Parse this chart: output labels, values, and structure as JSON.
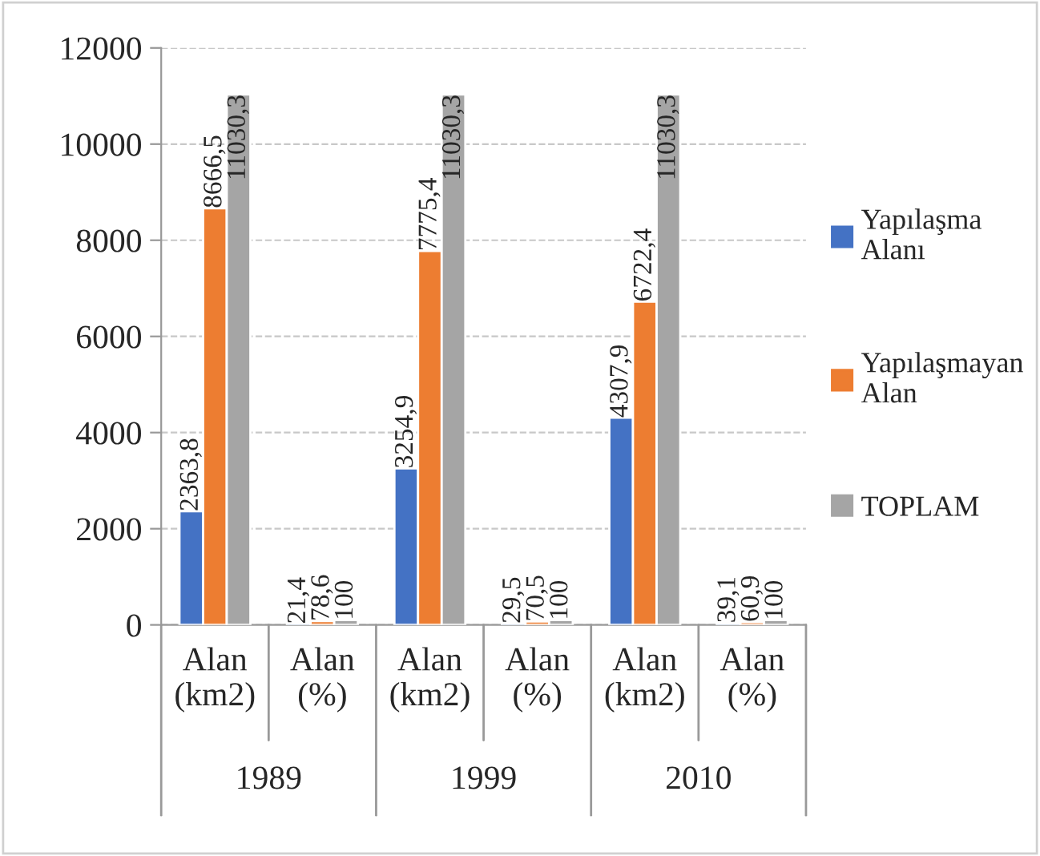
{
  "chart_data": {
    "type": "bar",
    "categories": [
      "Alan\n(km2)",
      "Alan\n(%)",
      "Alan\n(km2)",
      "Alan\n(%)",
      "Alan\n(km2)",
      "Alan\n(%)"
    ],
    "annotations": [
      "1989",
      "1999",
      "2010"
    ],
    "series": [
      {
        "name": "Yapılaşma Alanı",
        "color": "#4472c4",
        "values": [
          2363.8,
          21.4,
          3254.9,
          29.5,
          4307.9,
          39.1
        ],
        "value_labels": [
          "2363,8",
          "21,4",
          "3254,9",
          "29,5",
          "4307,9",
          "39,1"
        ]
      },
      {
        "name": "Yapılaşmayan Alan",
        "color": "#ed7d31",
        "values": [
          8666.5,
          78.6,
          7775.4,
          70.5,
          6722.4,
          60.9
        ],
        "value_labels": [
          "8666,5",
          "78,6",
          "7775,4",
          "70,5",
          "6722,4",
          "60,9"
        ]
      },
      {
        "name": "TOPLAM",
        "color": "#a5a5a5",
        "values": [
          11030.3,
          100,
          11030.3,
          100,
          11030.3,
          100
        ],
        "value_labels": [
          "11030,3",
          "100",
          "11030,3",
          "100",
          "11030,3",
          "100"
        ]
      }
    ],
    "ylim": [
      0,
      12000
    ],
    "yticks": [
      0,
      2000,
      4000,
      6000,
      8000,
      10000,
      12000
    ],
    "grid": "y",
    "legend": "right"
  }
}
